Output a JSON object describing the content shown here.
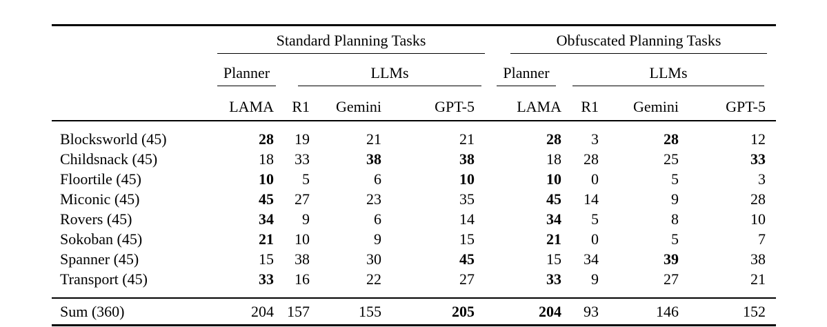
{
  "colors": {
    "background": "#ffffff",
    "text": "#000000",
    "rule": "#000000"
  },
  "table": {
    "groups": [
      {
        "title": "Standard Planning Tasks",
        "planner_label": "Planner",
        "llms_label": "LLMs"
      },
      {
        "title": "Obfuscated Planning Tasks",
        "planner_label": "Planner",
        "llms_label": "LLMs"
      }
    ],
    "column_headers": [
      "LAMA",
      "R1",
      "Gemini",
      "GPT-5",
      "LAMA",
      "R1",
      "Gemini",
      "GPT-5"
    ],
    "rows": [
      {
        "label": "Blocksworld (45)",
        "cells": [
          {
            "v": 28,
            "bold": true
          },
          {
            "v": 19,
            "bold": false
          },
          {
            "v": 21,
            "bold": false
          },
          {
            "v": 21,
            "bold": false
          },
          {
            "v": 28,
            "bold": true
          },
          {
            "v": 3,
            "bold": false
          },
          {
            "v": 28,
            "bold": true
          },
          {
            "v": 12,
            "bold": false
          }
        ]
      },
      {
        "label": "Childsnack (45)",
        "cells": [
          {
            "v": 18,
            "bold": false
          },
          {
            "v": 33,
            "bold": false
          },
          {
            "v": 38,
            "bold": true
          },
          {
            "v": 38,
            "bold": true
          },
          {
            "v": 18,
            "bold": false
          },
          {
            "v": 28,
            "bold": false
          },
          {
            "v": 25,
            "bold": false
          },
          {
            "v": 33,
            "bold": true
          }
        ]
      },
      {
        "label": "Floortile (45)",
        "cells": [
          {
            "v": 10,
            "bold": true
          },
          {
            "v": 5,
            "bold": false
          },
          {
            "v": 6,
            "bold": false
          },
          {
            "v": 10,
            "bold": true
          },
          {
            "v": 10,
            "bold": true
          },
          {
            "v": 0,
            "bold": false
          },
          {
            "v": 5,
            "bold": false
          },
          {
            "v": 3,
            "bold": false
          }
        ]
      },
      {
        "label": "Miconic (45)",
        "cells": [
          {
            "v": 45,
            "bold": true
          },
          {
            "v": 27,
            "bold": false
          },
          {
            "v": 23,
            "bold": false
          },
          {
            "v": 35,
            "bold": false
          },
          {
            "v": 45,
            "bold": true
          },
          {
            "v": 14,
            "bold": false
          },
          {
            "v": 9,
            "bold": false
          },
          {
            "v": 28,
            "bold": false
          }
        ]
      },
      {
        "label": "Rovers (45)",
        "cells": [
          {
            "v": 34,
            "bold": true
          },
          {
            "v": 9,
            "bold": false
          },
          {
            "v": 6,
            "bold": false
          },
          {
            "v": 14,
            "bold": false
          },
          {
            "v": 34,
            "bold": true
          },
          {
            "v": 5,
            "bold": false
          },
          {
            "v": 8,
            "bold": false
          },
          {
            "v": 10,
            "bold": false
          }
        ]
      },
      {
        "label": "Sokoban (45)",
        "cells": [
          {
            "v": 21,
            "bold": true
          },
          {
            "v": 10,
            "bold": false
          },
          {
            "v": 9,
            "bold": false
          },
          {
            "v": 15,
            "bold": false
          },
          {
            "v": 21,
            "bold": true
          },
          {
            "v": 0,
            "bold": false
          },
          {
            "v": 5,
            "bold": false
          },
          {
            "v": 7,
            "bold": false
          }
        ]
      },
      {
        "label": "Spanner (45)",
        "cells": [
          {
            "v": 15,
            "bold": false
          },
          {
            "v": 38,
            "bold": false
          },
          {
            "v": 30,
            "bold": false
          },
          {
            "v": 45,
            "bold": true
          },
          {
            "v": 15,
            "bold": false
          },
          {
            "v": 34,
            "bold": false
          },
          {
            "v": 39,
            "bold": true
          },
          {
            "v": 38,
            "bold": false
          }
        ]
      },
      {
        "label": "Transport (45)",
        "cells": [
          {
            "v": 33,
            "bold": true
          },
          {
            "v": 16,
            "bold": false
          },
          {
            "v": 22,
            "bold": false
          },
          {
            "v": 27,
            "bold": false
          },
          {
            "v": 33,
            "bold": true
          },
          {
            "v": 9,
            "bold": false
          },
          {
            "v": 27,
            "bold": false
          },
          {
            "v": 21,
            "bold": false
          }
        ]
      }
    ],
    "sum_row": {
      "label": "Sum (360)",
      "cells": [
        {
          "v": 204,
          "bold": false
        },
        {
          "v": 157,
          "bold": false
        },
        {
          "v": 155,
          "bold": false
        },
        {
          "v": 205,
          "bold": true
        },
        {
          "v": 204,
          "bold": true
        },
        {
          "v": 93,
          "bold": false
        },
        {
          "v": 146,
          "bold": false
        },
        {
          "v": 152,
          "bold": false
        }
      ]
    }
  }
}
